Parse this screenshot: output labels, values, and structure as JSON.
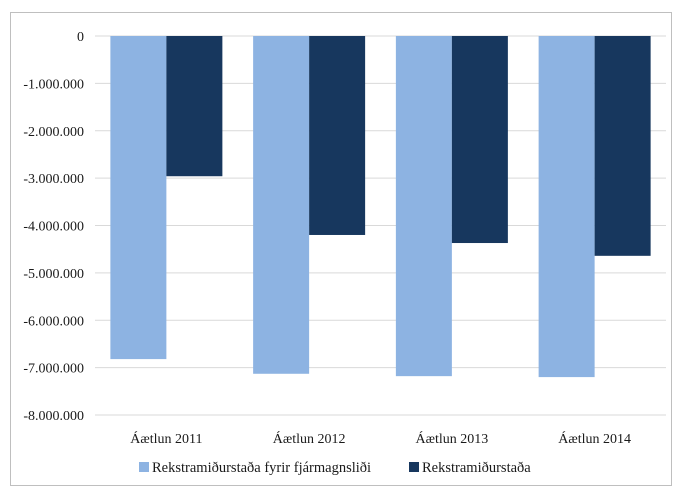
{
  "chart_data": {
    "type": "bar",
    "title": "",
    "xlabel": "",
    "ylabel": "",
    "categories": [
      "Áætlun 2011",
      "Áætlun 2012",
      "Áætlun 2013",
      "Áætlun 2014"
    ],
    "series": [
      {
        "name": "Rekstramiðurstaða fyrir fjármagnsliði",
        "color": "#8db3e2",
        "values": [
          -6820000,
          -7130000,
          -7180000,
          -7200000
        ]
      },
      {
        "name": "Rekstramiðurstaða",
        "color": "#17375e",
        "values": [
          -2960000,
          -4200000,
          -4370000,
          -4640000
        ]
      }
    ],
    "ylim": [
      -8000000,
      0
    ],
    "yticks": [
      0,
      -1000000,
      -2000000,
      -3000000,
      -4000000,
      -5000000,
      -6000000,
      -7000000,
      -8000000
    ],
    "ytick_labels": [
      "0",
      "-1.000.000",
      "-2.000.000",
      "-3.000.000",
      "-4.000.000",
      "-5.000.000",
      "-6.000.000",
      "-7.000.000",
      "-8.000.000"
    ],
    "grid": true,
    "legend_position": "bottom"
  }
}
